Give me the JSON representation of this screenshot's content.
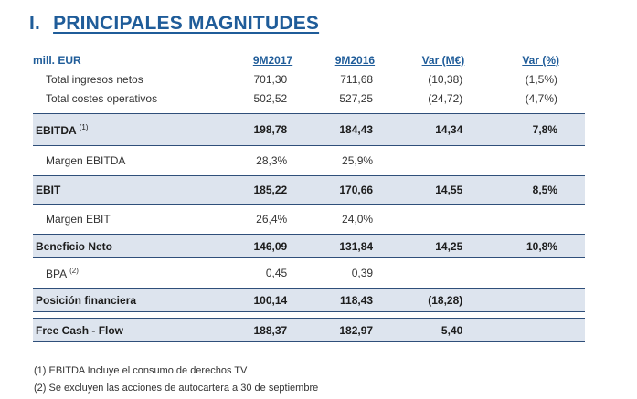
{
  "heading": {
    "number": "I.",
    "title": "PRINCIPALES MAGNITUDES"
  },
  "table": {
    "header": {
      "label": "mill. EUR",
      "col1": "9M2017",
      "col2": "9M2016",
      "col3": "Var (M€)",
      "col4": "Var (%)"
    },
    "rows": [
      {
        "label": "Total ingresos netos",
        "v1": "701,30",
        "v2": "711,68",
        "v3": "(10,38)",
        "v4": "(1,5%)"
      },
      {
        "label": "Total costes operativos",
        "v1": "502,52",
        "v2": "527,25",
        "v3": "(24,72)",
        "v4": "(4,7%)"
      },
      {
        "label": "EBITDA",
        "note": "(1)",
        "v1": "198,78",
        "v2": "184,43",
        "v3": "14,34",
        "v4": "7,8%"
      },
      {
        "label": "Margen EBITDA",
        "v1": "28,3%",
        "v2": "25,9%",
        "v3": "",
        "v4": ""
      },
      {
        "label": "EBIT",
        "v1": "185,22",
        "v2": "170,66",
        "v3": "14,55",
        "v4": "8,5%"
      },
      {
        "label": "Margen EBIT",
        "v1": "26,4%",
        "v2": "24,0%",
        "v3": "",
        "v4": ""
      },
      {
        "label": "Beneficio Neto",
        "v1": "146,09",
        "v2": "131,84",
        "v3": "14,25",
        "v4": "10,8%"
      },
      {
        "label": "BPA",
        "note": "(2)",
        "v1": "0,45",
        "v2": "0,39",
        "v3": "",
        "v4": ""
      },
      {
        "label": "Posición financiera",
        "v1": "100,14",
        "v2": "118,43",
        "v3": "(18,28)",
        "v4": ""
      },
      {
        "label": "Free Cash - Flow",
        "v1": "188,37",
        "v2": "182,97",
        "v3": "5,40",
        "v4": ""
      }
    ]
  },
  "footnotes": [
    "(1) EBITDA Incluye el consumo de derechos TV",
    "(2) Se excluyen las acciones de autocartera a 30 de septiembre"
  ],
  "colors": {
    "accent": "#1f5c99",
    "highlight": "#dde4ee",
    "rule": "#2f4f7a"
  }
}
